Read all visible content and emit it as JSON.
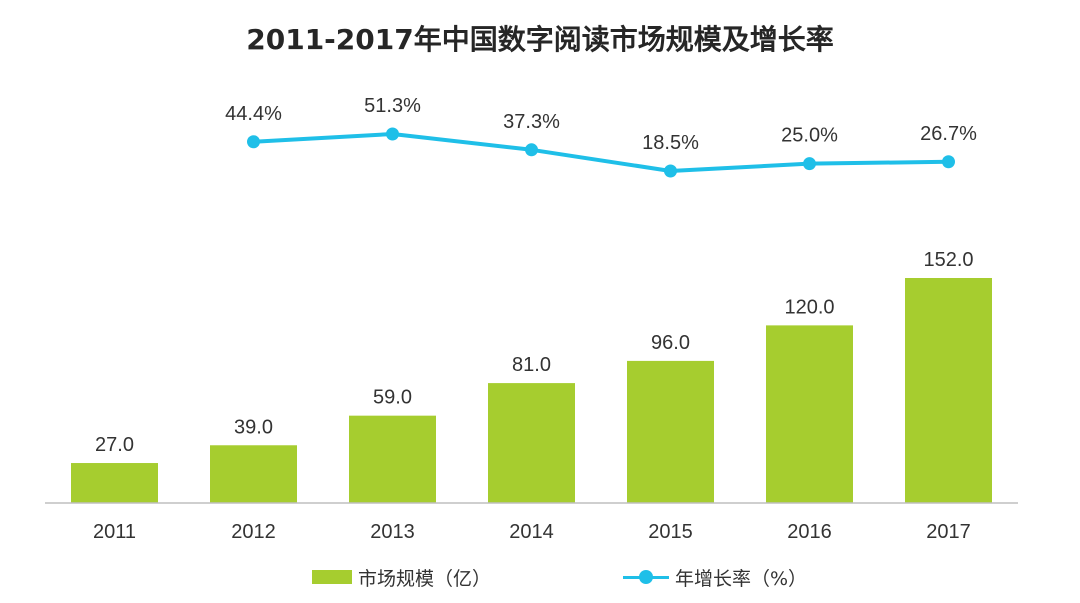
{
  "title": "2011-2017年中国数字阅读市场规模及增长率",
  "colors": {
    "bar": "#a6cd2f",
    "line": "#1fbfe8",
    "axis": "#bfbfbf"
  },
  "legend": {
    "bar_label": "市场规模（亿）",
    "line_label": "年增长率（%）"
  },
  "chart_data": {
    "type": "bar",
    "categories": [
      "2011",
      "2012",
      "2013",
      "2014",
      "2015",
      "2016",
      "2017"
    ],
    "series": [
      {
        "name": "市场规模（亿）",
        "type": "bar",
        "values": [
          27.0,
          39.0,
          59.0,
          81.0,
          96.0,
          120.0,
          152.0
        ],
        "labels": [
          "27.0",
          "39.0",
          "59.0",
          "81.0",
          "96.0",
          "120.0",
          "152.0"
        ]
      },
      {
        "name": "年增长率（%）",
        "type": "line",
        "values": [
          null,
          44.4,
          51.3,
          37.3,
          18.5,
          25.0,
          26.7
        ],
        "labels": [
          null,
          "44.4%",
          "51.3%",
          "37.3%",
          "18.5%",
          "25.0%",
          "26.7%"
        ]
      }
    ],
    "bar_axis_range": [
      0,
      165
    ],
    "line_axis_range": [
      0,
      60
    ],
    "grid": false,
    "legend_position": "bottom"
  }
}
